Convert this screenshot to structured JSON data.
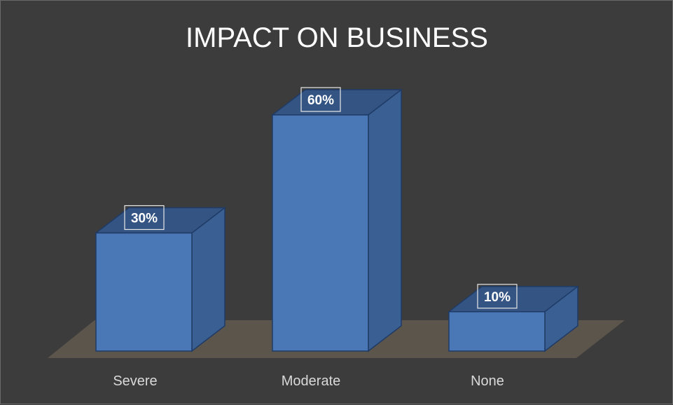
{
  "chart_data": {
    "type": "bar",
    "style": "3d-column",
    "title": "IMPACT ON BUSINESS",
    "categories": [
      "Severe",
      "Moderate",
      "None"
    ],
    "values": [
      30,
      60,
      10
    ],
    "value_labels": [
      "30%",
      "60%",
      "10%"
    ],
    "unit": "%",
    "ylim": [
      0,
      60
    ],
    "grid": false,
    "legend": "none",
    "colors": {
      "background": "#3c3c3c",
      "bar_front": "#4a78b6",
      "bar_side": "#3a5f92",
      "bar_top": "#345584",
      "bar_edge": "#1f3b66",
      "floor": "#5c554b",
      "title": "#ffffff",
      "category_label": "#d9d9d9",
      "data_label_border": "#e8e8e8"
    }
  }
}
